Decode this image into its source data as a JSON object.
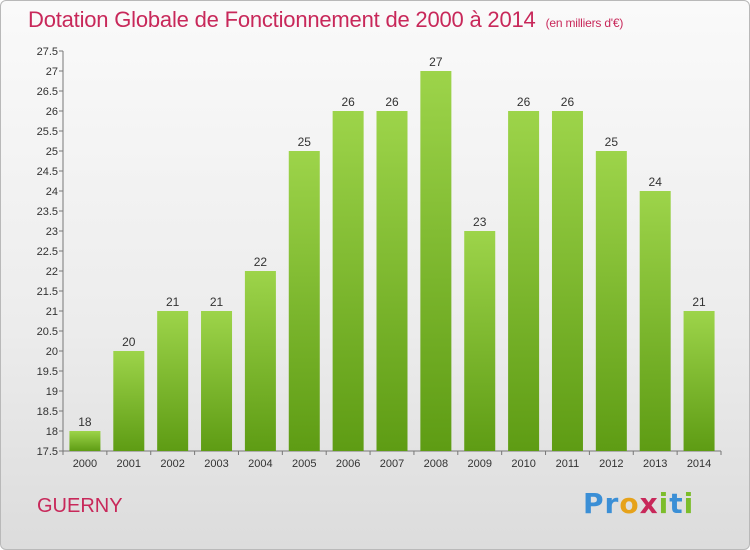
{
  "title": "Dotation Globale de Fonctionnement de 2000 à 2014",
  "subtitle": "(en milliers d'€)",
  "town": "GUERNY",
  "logo": {
    "text": "Proxiti",
    "letters": [
      "P",
      "r",
      "o",
      "x",
      "i",
      "t",
      "i"
    ],
    "colors": [
      "#3b8fd6",
      "#3b8fd6",
      "#e6a21a",
      "#c8285a",
      "#7cbd2b",
      "#3b8fd6",
      "#7cbd2b"
    ]
  },
  "colors": {
    "title": "#c8285a",
    "bar_top": "#9dd44a",
    "bar_bottom": "#5e9c14"
  },
  "chart_data": {
    "type": "bar",
    "categories": [
      "2000",
      "2001",
      "2002",
      "2003",
      "2004",
      "2005",
      "2006",
      "2007",
      "2008",
      "2009",
      "2010",
      "2011",
      "2012",
      "2013",
      "2014"
    ],
    "values": [
      18,
      20,
      21,
      21,
      22,
      25,
      26,
      26,
      27,
      23,
      26,
      26,
      25,
      24,
      21
    ],
    "ylim": [
      17.5,
      27.5
    ],
    "yticks": [
      "17.5",
      "18",
      "18.5",
      "19",
      "19.5",
      "20",
      "20.5",
      "21",
      "21.5",
      "22",
      "22.5",
      "23",
      "23.5",
      "24",
      "24.5",
      "25",
      "25.5",
      "26",
      "26.5",
      "27",
      "27.5"
    ],
    "grid": false,
    "data_labels": true
  }
}
